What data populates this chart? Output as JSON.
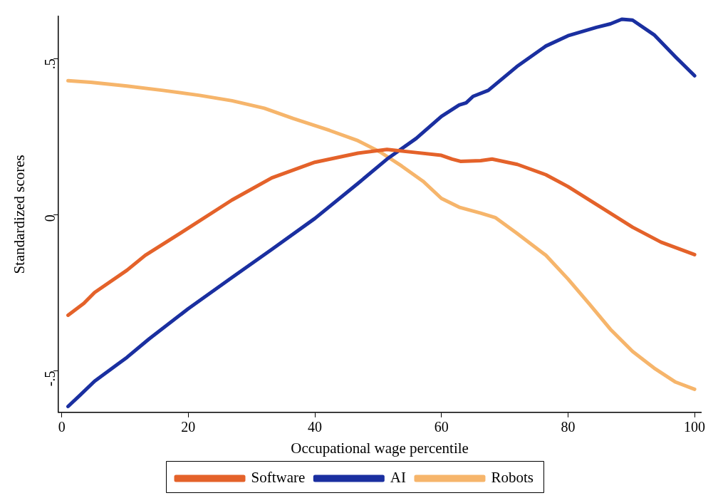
{
  "chart_data": {
    "type": "line",
    "xlabel": "Occupational wage percentile",
    "ylabel": "Standardized scores",
    "xlim": [
      -0.5,
      101
    ],
    "ylim": [
      -0.633,
      0.635
    ],
    "xticks": [
      0,
      20,
      40,
      60,
      80,
      100
    ],
    "yticks": [
      {
        "value": 0.5,
        "label": ".5"
      },
      0,
      {
        "value": -0.5,
        "label": "-.5"
      }
    ],
    "grid": false,
    "legend": "bottom",
    "marker": "none",
    "line_style": "solid",
    "series": [
      {
        "name": "Software",
        "color": "#e4622a",
        "x": [
          1,
          3.5,
          5.2,
          10.3,
          13.2,
          20,
          26.9,
          33.2,
          40,
          46.8,
          51.4,
          56,
          60,
          61.7,
          63,
          66.2,
          68,
          72,
          76.5,
          80,
          85.6,
          90.2,
          94.7,
          100
        ],
        "values": [
          -0.322,
          -0.284,
          -0.249,
          -0.178,
          -0.13,
          -0.043,
          0.047,
          0.118,
          0.168,
          0.197,
          0.209,
          0.199,
          0.19,
          0.178,
          0.171,
          0.173,
          0.178,
          0.161,
          0.128,
          0.09,
          0.019,
          -0.04,
          -0.088,
          -0.128
        ]
      },
      {
        "name": "AI",
        "color": "#1a2fa0",
        "x": [
          1,
          2.9,
          5.2,
          10.3,
          13.8,
          20,
          26.9,
          33.2,
          40,
          46.8,
          51.4,
          56,
          60,
          62.8,
          63.9,
          65,
          67.4,
          71.9,
          76.5,
          80,
          84.5,
          86.7,
          88.5,
          90.2,
          93.6,
          97,
          100
        ],
        "values": [
          -0.614,
          -0.578,
          -0.533,
          -0.457,
          -0.398,
          -0.301,
          -0.201,
          -0.111,
          -0.012,
          0.1,
          0.178,
          0.244,
          0.315,
          0.351,
          0.358,
          0.379,
          0.398,
          0.474,
          0.54,
          0.573,
          0.6,
          0.611,
          0.626,
          0.623,
          0.576,
          0.505,
          0.445
        ]
      },
      {
        "name": "Robots",
        "color": "#f6b56b",
        "x": [
          1,
          4.6,
          10.3,
          16,
          21.8,
          26.9,
          32,
          36.6,
          42.3,
          46.8,
          50.3,
          53.7,
          57.1,
          60,
          62.8,
          66.2,
          68.5,
          71.9,
          76.5,
          80,
          83.3,
          86.7,
          90.2,
          93.6,
          97,
          100
        ],
        "values": [
          0.429,
          0.424,
          0.412,
          0.398,
          0.382,
          0.365,
          0.341,
          0.308,
          0.27,
          0.237,
          0.201,
          0.156,
          0.107,
          0.052,
          0.024,
          0.005,
          -0.009,
          -0.059,
          -0.13,
          -0.206,
          -0.284,
          -0.367,
          -0.438,
          -0.491,
          -0.536,
          -0.559
        ]
      }
    ]
  }
}
